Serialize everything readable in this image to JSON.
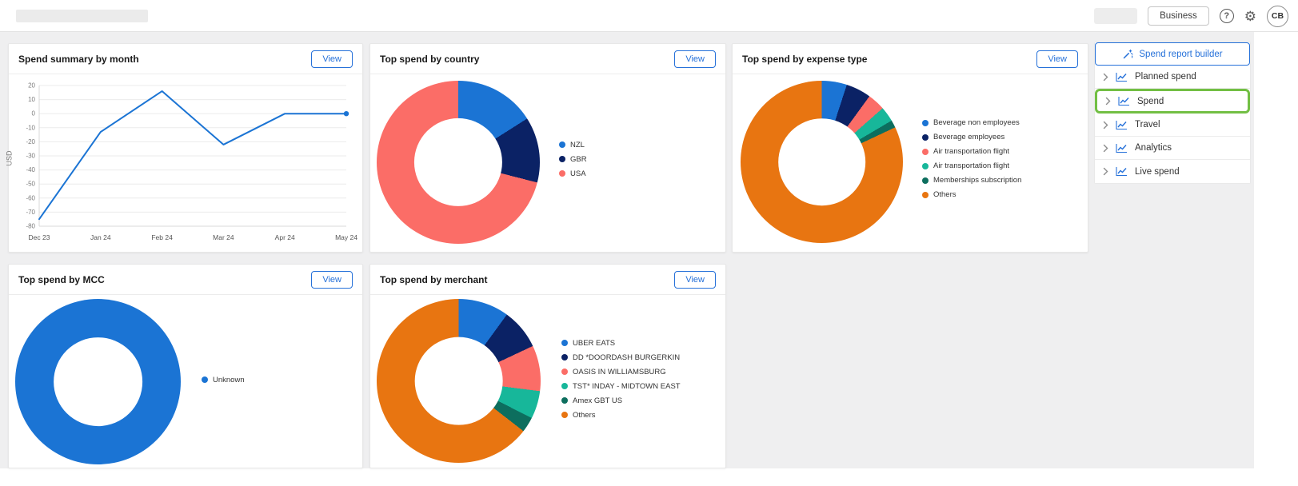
{
  "header": {
    "business_button": "Business",
    "help_glyph": "?",
    "gear_glyph": "⚙",
    "avatar_initials": "CB"
  },
  "sidebar": {
    "builder_label": "Spend report builder",
    "items": [
      {
        "label": "Planned spend",
        "highlighted": false
      },
      {
        "label": "Spend",
        "highlighted": true
      },
      {
        "label": "Travel",
        "highlighted": false
      },
      {
        "label": "Analytics",
        "highlighted": false
      },
      {
        "label": "Live spend",
        "highlighted": false
      }
    ]
  },
  "cards": [
    {
      "id": "spend-summary",
      "title": "Spend summary by month",
      "view": "View"
    },
    {
      "id": "country",
      "title": "Top spend by country",
      "view": "View"
    },
    {
      "id": "expense-type",
      "title": "Top spend by expense type",
      "view": "View"
    },
    {
      "id": "mcc",
      "title": "Top spend by MCC",
      "view": "View"
    },
    {
      "id": "merchant",
      "title": "Top spend by merchant",
      "view": "View"
    }
  ],
  "colors": {
    "accent_blue": "#2671d9",
    "highlight_green": "#72bf44"
  },
  "chart_data": [
    {
      "id": "spend-summary",
      "type": "line",
      "title": "Spend summary by month",
      "x": [
        "Dec 23",
        "Jan 24",
        "Feb 24",
        "Mar 24",
        "Apr 24",
        "May 24"
      ],
      "values": [
        -75,
        -13,
        16,
        -22,
        0,
        0
      ],
      "ylabel": "USD",
      "ylim": [
        -80,
        20
      ],
      "yticks": [
        20,
        10,
        0,
        -10,
        -20,
        -30,
        -40,
        -50,
        -60,
        -70,
        -80
      ],
      "line_color": "#1b74d4",
      "grid": true,
      "legend": "none"
    },
    {
      "id": "country",
      "type": "pie",
      "subtype": "donut",
      "title": "Top spend by country",
      "slices": [
        {
          "label": "NZL",
          "value": 16,
          "color": "#1b74d4"
        },
        {
          "label": "GBR",
          "value": 13,
          "color": "#0b2265"
        },
        {
          "label": "USA",
          "value": 71,
          "color": "#fb6d67"
        }
      ],
      "legend_position": "right"
    },
    {
      "id": "expense-type",
      "type": "pie",
      "subtype": "donut",
      "title": "Top spend by expense type",
      "slices": [
        {
          "label": "Beverage non employees",
          "value": 5,
          "color": "#1b74d4"
        },
        {
          "label": "Beverage employees",
          "value": 5,
          "color": "#0b2265"
        },
        {
          "label": "Air transportation flight",
          "value": 3.5,
          "color": "#fb6d67"
        },
        {
          "label": "Air transportation flight",
          "value": 3,
          "color": "#17b79a"
        },
        {
          "label": "Memberships subscription",
          "value": 1.5,
          "color": "#0d6e5e"
        },
        {
          "label": "Others",
          "value": 82,
          "color": "#e87511"
        }
      ],
      "legend_position": "right"
    },
    {
      "id": "mcc",
      "type": "pie",
      "subtype": "donut",
      "title": "Top spend by MCC",
      "slices": [
        {
          "label": "Unknown",
          "value": 100,
          "color": "#1b74d4"
        }
      ],
      "legend_position": "right"
    },
    {
      "id": "merchant",
      "type": "pie",
      "subtype": "donut",
      "title": "Top spend by merchant",
      "slices": [
        {
          "label": "UBER EATS",
          "value": 10,
          "color": "#1b74d4"
        },
        {
          "label": "DD *DOORDASH BURGERKIN",
          "value": 8,
          "color": "#0b2265"
        },
        {
          "label": "OASIS IN WILLIAMSBURG",
          "value": 9,
          "color": "#fb6d67"
        },
        {
          "label": "TST* INDAY - MIDTOWN EAST",
          "value": 5.5,
          "color": "#17b79a"
        },
        {
          "label": "Amex GBT US",
          "value": 3,
          "color": "#0d6e5e"
        },
        {
          "label": "Others",
          "value": 64.5,
          "color": "#e87511"
        }
      ],
      "legend_position": "right"
    }
  ]
}
